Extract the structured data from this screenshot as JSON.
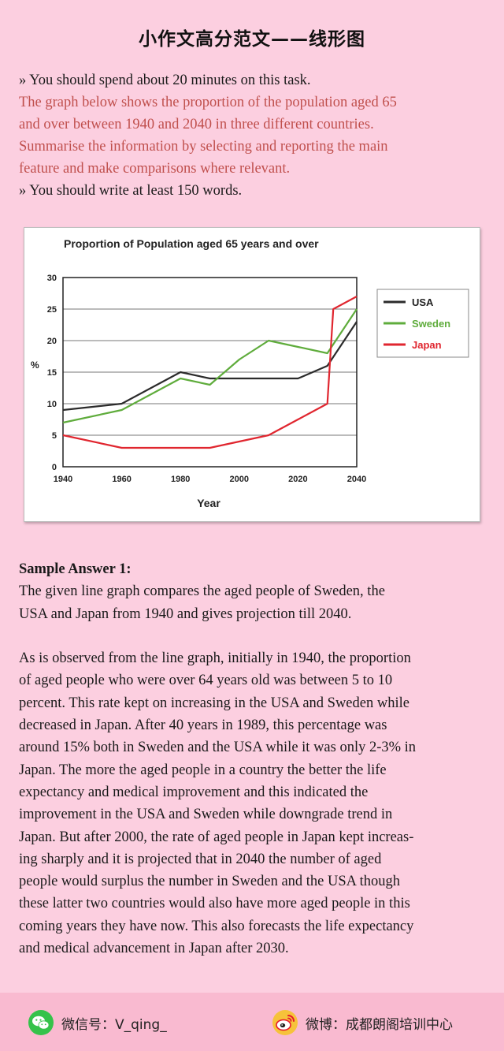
{
  "page_title": "小作文高分范文——线形图",
  "task": {
    "line1": "» You should spend about 20 minutes on this task.",
    "prompt_lines": [
      "The graph below shows the proportion of the population aged 65",
      "and over between 1940 and 2040 in three different countries.",
      "Summarise the information by selecting and reporting the main",
      "feature and make comparisons where relevant."
    ],
    "line_last": "» You should write at least 150 words."
  },
  "chart_data": {
    "type": "line",
    "title": "Proportion of Population aged 65 years and over",
    "xlabel": "Year",
    "ylabel": "%",
    "xlim": [
      1940,
      2040
    ],
    "ylim": [
      0,
      30
    ],
    "xticks": [
      1940,
      1960,
      1980,
      2000,
      2020,
      2040
    ],
    "yticks": [
      0,
      5,
      10,
      15,
      20,
      25,
      30
    ],
    "grid": "horizontal",
    "legend_position": "right",
    "series": [
      {
        "name": "USA",
        "color": "#2b2b2b",
        "x": [
          1940,
          1960,
          1980,
          1990,
          2000,
          2010,
          2020,
          2030,
          2040
        ],
        "y": [
          9,
          10,
          15,
          14,
          14,
          14,
          14,
          16,
          23
        ]
      },
      {
        "name": "Sweden",
        "color": "#5fac3c",
        "x": [
          1940,
          1960,
          1980,
          1990,
          2000,
          2010,
          2020,
          2030,
          2040
        ],
        "y": [
          7,
          9,
          14,
          13,
          17,
          20,
          19,
          18,
          25
        ]
      },
      {
        "name": "Japan",
        "color": "#e0262f",
        "x": [
          1940,
          1960,
          1970,
          1980,
          1990,
          2000,
          2010,
          2020,
          2030,
          2032,
          2040
        ],
        "y": [
          5,
          3,
          3,
          3,
          3,
          4,
          5,
          7.5,
          10,
          25,
          27
        ]
      }
    ]
  },
  "answer": {
    "heading": "Sample Answer 1:",
    "para1": [
      "The given line graph compares the aged people of Sweden, the",
      "USA and Japan from 1940 and gives projection till 2040."
    ],
    "para2": [
      "As is observed from the line graph, initially in 1940, the proportion",
      "of aged people who were over 64 years old was between 5 to 10",
      "percent. This rate kept on increasing in the USA and Sweden while",
      "decreased in Japan. After 40 years in 1989, this percentage was",
      "around 15% both in Sweden and the USA while it was only 2-3% in",
      "Japan. The more the aged people in a country the better the life",
      "expectancy and medical improvement and this indicated the",
      "improvement in the USA and Sweden while downgrade trend in",
      "Japan. But after 2000, the rate of aged people in Japan kept increas-",
      "ing sharply and it is projected that in 2040 the number of aged",
      "people would surplus the number in Sweden and the USA though",
      "these latter two countries would also have more aged people in this",
      "coming years they have now. This also forecasts the life expectancy",
      "and medical advancement in Japan after 2030."
    ]
  },
  "footer": {
    "wechat_label": "微信号：V_qing_",
    "weibo_label": "微博：成都朗阁培训中心",
    "wechat_icon": "wechat-icon",
    "weibo_icon": "weibo-icon",
    "wechat_color": "#35c24a",
    "weibo_color": "#e6162d"
  }
}
